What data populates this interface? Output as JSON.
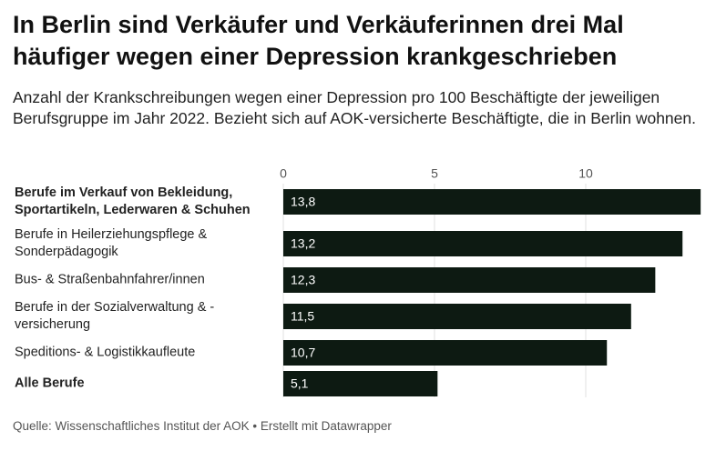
{
  "chart_data": {
    "type": "bar",
    "orientation": "horizontal",
    "title": "In Berlin sind Verkäufer und Verkäuferinnen drei Mal häufiger wegen einer Depression krankgeschrieben",
    "subtitle": "Anzahl der Krankschreibungen wegen einer Depression pro 100 Beschäftigte der jeweiligen Berufsgruppe im Jahr 2022. Bezieht sich auf AOK-versicherte Beschäftigte, die in Berlin wohnen.",
    "categories": [
      "Berufe im Verkauf von Bekleidung,\nSportartikeln, Lederwaren & Schuhen",
      "Berufe in Heilerziehungspflege &\nSonderpädagogik",
      "Bus- & Straßenbahnfahrer/innen",
      "Berufe in der Sozialverwaltung & -\nversicherung",
      "Speditions- & Logistikkaufleute",
      "Alle Berufe"
    ],
    "bold": [
      true,
      false,
      false,
      false,
      false,
      true
    ],
    "values": [
      13.8,
      13.2,
      12.3,
      11.5,
      10.7,
      5.1
    ],
    "value_labels": [
      "13,8",
      "13,2",
      "12,3",
      "11,5",
      "10,7",
      "5,1"
    ],
    "color": "#0d1a12",
    "xlim": [
      0,
      14
    ],
    "xticks": [
      0,
      5,
      10
    ],
    "grid": true,
    "source": "Quelle: Wissenschaftliches Institut der AOK",
    "credit": "• Erstellt mit Datawrapper"
  }
}
